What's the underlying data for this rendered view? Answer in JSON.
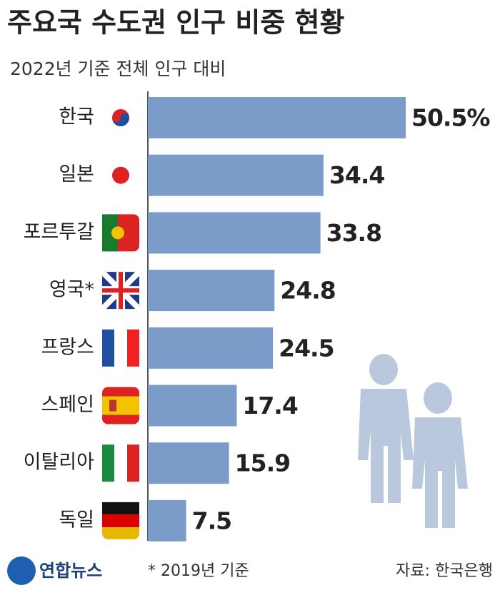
{
  "chart_data": {
    "type": "bar",
    "title": "주요국 수도권 인구 비중 현황",
    "subtitle": "2022년 기준 전체 인구 대비",
    "categories": [
      "한국",
      "일본",
      "포르투갈",
      "영국*",
      "프랑스",
      "스페인",
      "이탈리아",
      "독일"
    ],
    "values": [
      50.5,
      34.4,
      33.8,
      24.8,
      24.5,
      17.4,
      15.9,
      7.5
    ],
    "value_labels": [
      "50.5%",
      "34.4",
      "33.8",
      "24.8",
      "24.5",
      "17.4",
      "15.9",
      "7.5"
    ],
    "color": "#7b9cc8",
    "note": "* 2019년 기준",
    "source": "자료: 한국은행",
    "logo": "연합뉴스"
  }
}
